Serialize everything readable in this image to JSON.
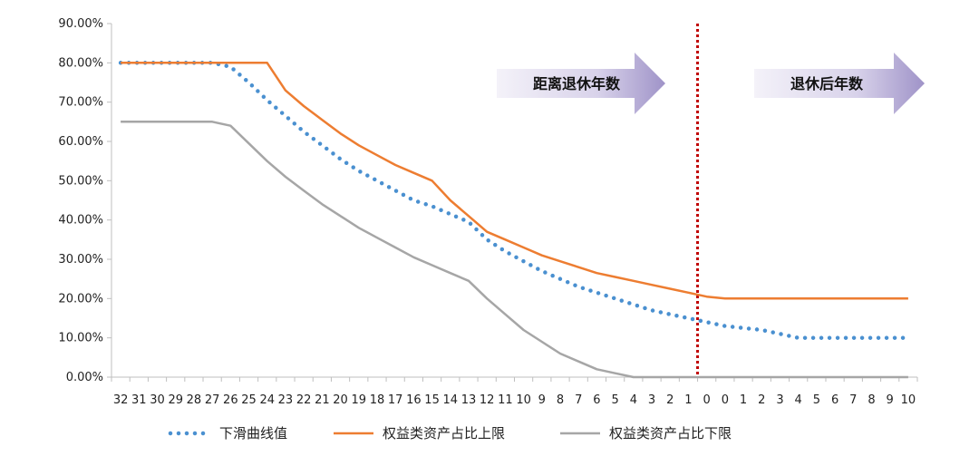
{
  "chart_data": {
    "type": "line",
    "x_label_top": "",
    "x": [
      "32",
      "31",
      "30",
      "29",
      "28",
      "27",
      "26",
      "25",
      "24",
      "23",
      "22",
      "21",
      "20",
      "19",
      "18",
      "17",
      "16",
      "15",
      "14",
      "13",
      "12",
      "11",
      "10",
      "9",
      "8",
      "7",
      "6",
      "5",
      "4",
      "3",
      "2",
      "1",
      "0",
      "0",
      "1",
      "2",
      "3",
      "4",
      "5",
      "6",
      "7",
      "8",
      "9",
      "10"
    ],
    "y_ticks": [
      "0.00%",
      "10.00%",
      "20.00%",
      "30.00%",
      "40.00%",
      "50.00%",
      "60.00%",
      "70.00%",
      "80.00%",
      "90.00%"
    ],
    "ylim": [
      0,
      90
    ],
    "series": [
      {
        "name": "下滑曲线值",
        "color": "#4a90d0",
        "style": "dotted",
        "values": [
          80,
          80,
          80,
          80,
          80,
          80,
          79,
          75,
          70.5,
          66.5,
          62.5,
          59,
          55.5,
          52.5,
          50,
          47.5,
          45,
          43.5,
          41.5,
          39.5,
          35,
          32,
          29.5,
          27,
          25,
          23,
          21.5,
          20,
          18.5,
          17,
          16,
          15,
          14,
          13,
          12.5,
          12,
          11,
          10,
          10,
          10,
          10,
          10,
          10,
          10
        ]
      },
      {
        "name": "权益类资产占比上限",
        "color": "#ed7d31",
        "style": "solid",
        "values": [
          80,
          80,
          80,
          80,
          80,
          80,
          80,
          80,
          80,
          73,
          69,
          65.5,
          62,
          59,
          56.5,
          54,
          52,
          50,
          45,
          41,
          37,
          35,
          33,
          31,
          29.5,
          28,
          26.5,
          25.5,
          24.5,
          23.5,
          22.5,
          21.5,
          20.5,
          20,
          20,
          20,
          20,
          20,
          20,
          20,
          20,
          20,
          20,
          20
        ]
      },
      {
        "name": "权益类资产占比下限",
        "color": "#a6a6a6",
        "style": "solid",
        "values": [
          65,
          65,
          65,
          65,
          65,
          65,
          64,
          59.5,
          55,
          51,
          47.5,
          44,
          41,
          38,
          35.5,
          33,
          30.5,
          28.5,
          26.5,
          24.5,
          20,
          16,
          12,
          9,
          6,
          4,
          2,
          1,
          0,
          0,
          0,
          0,
          0,
          0,
          0,
          0,
          0,
          0,
          0,
          0,
          0,
          0,
          0,
          0
        ]
      }
    ],
    "annotations": {
      "arrow_before": "距离退休年数",
      "arrow_after": "退休后年数",
      "divider_at_index": 32
    },
    "legend_position": "bottom",
    "grid": false
  }
}
